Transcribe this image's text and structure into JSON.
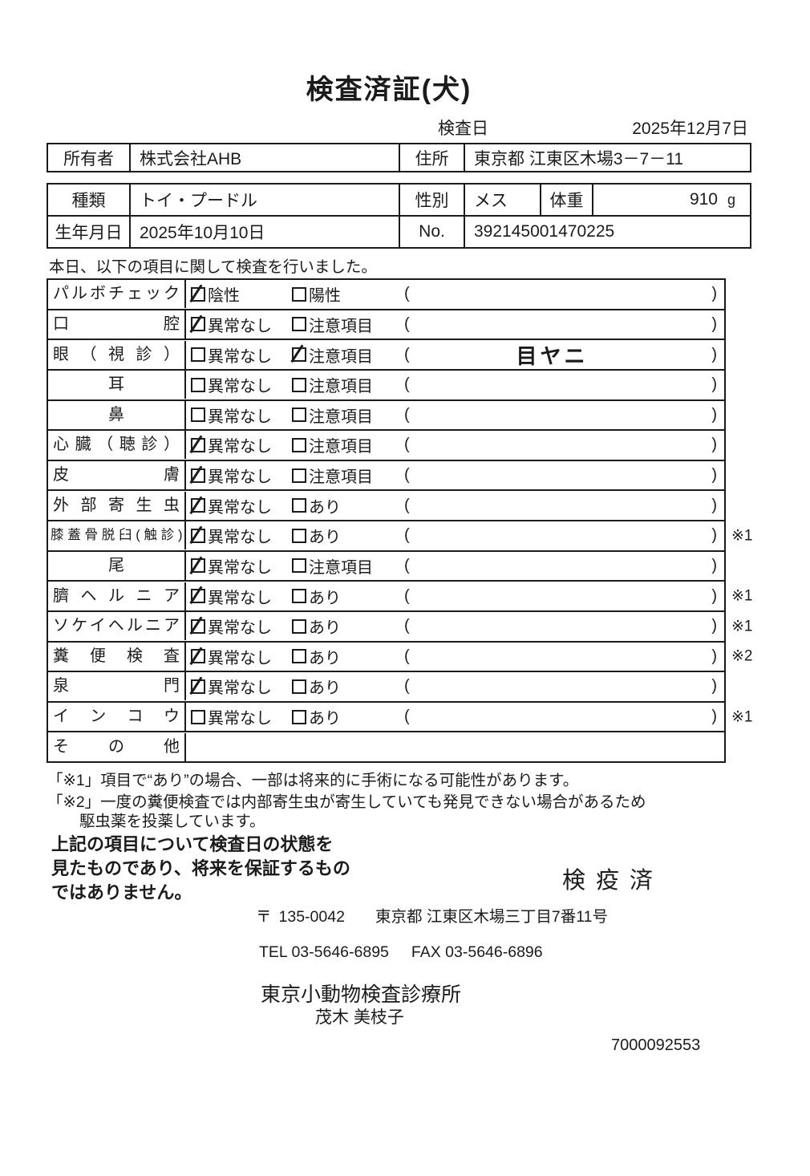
{
  "document": {
    "title": "検査済証(犬)",
    "inspection_date_label": "検査日",
    "inspection_date": "2025年12月7日",
    "intro": "本日、以下の項目に関して検査を行いました。"
  },
  "owner": {
    "owner_label": "所有者",
    "owner_name": "株式会社AHB",
    "address_label": "住所",
    "address": "東京都 江東区木場3－7－11"
  },
  "pet": {
    "breed_label": "種類",
    "breed": "トイ・プードル",
    "sex_label": "性別",
    "sex": "メス",
    "weight_label": "体重",
    "weight": "910",
    "weight_unit": "g",
    "birth_label": "生年月日",
    "birth_date": "2025年10月10日",
    "no_label": "No.",
    "no_value": "392145001470225"
  },
  "checklist": {
    "paren_open": "(",
    "paren_close": ")",
    "rows": [
      {
        "label": "パルボチェック",
        "option1": "陰性",
        "option2": "陽性",
        "checked": 0,
        "note": "",
        "mark": ""
      },
      {
        "label": "口腔",
        "option1": "異常なし",
        "option2": "注意項目",
        "checked": 0,
        "note": "",
        "mark": ""
      },
      {
        "label": "眼（視診）",
        "option1": "異常なし",
        "option2": "注意項目",
        "checked": 1,
        "note": "目ヤニ",
        "mark": ""
      },
      {
        "label": "耳",
        "option1": "異常なし",
        "option2": "注意項目",
        "checked": null,
        "note": "",
        "mark": ""
      },
      {
        "label": "鼻",
        "option1": "異常なし",
        "option2": "注意項目",
        "checked": null,
        "note": "",
        "mark": ""
      },
      {
        "label": "心臓（聴診）",
        "option1": "異常なし",
        "option2": "注意項目",
        "checked": 0,
        "note": "",
        "mark": ""
      },
      {
        "label": "皮膚",
        "option1": "異常なし",
        "option2": "注意項目",
        "checked": 0,
        "note": "",
        "mark": ""
      },
      {
        "label": "外部寄生虫",
        "option1": "異常なし",
        "option2": "あり",
        "checked": 0,
        "note": "",
        "mark": ""
      },
      {
        "label": "膝蓋骨脱臼(触診)",
        "option1": "異常なし",
        "option2": "あり",
        "checked": 0,
        "note": "",
        "mark": "※1"
      },
      {
        "label": "尾",
        "option1": "異常なし",
        "option2": "注意項目",
        "checked": 0,
        "note": "",
        "mark": ""
      },
      {
        "label": "臍ヘルニア",
        "option1": "異常なし",
        "option2": "あり",
        "checked": 0,
        "note": "",
        "mark": "※1"
      },
      {
        "label": "ソケイヘルニア",
        "option1": "異常なし",
        "option2": "あり",
        "checked": 0,
        "note": "",
        "mark": "※1"
      },
      {
        "label": "糞便検査",
        "option1": "異常なし",
        "option2": "あり",
        "checked": 0,
        "note": "",
        "mark": "※2"
      },
      {
        "label": "泉門",
        "option1": "異常なし",
        "option2": "あり",
        "checked": 0,
        "note": "",
        "mark": ""
      },
      {
        "label": "インコウ",
        "option1": "異常なし",
        "option2": "あり",
        "checked": null,
        "note": "",
        "mark": "※1"
      },
      {
        "label": "その他",
        "option1": "",
        "option2": "",
        "checked": null,
        "note": "",
        "mark": ""
      }
    ]
  },
  "notes": {
    "note1": "「※1」項目で“あり”の場合、一部は将来的に手術になる可能性があります。",
    "note2_line1": "「※2」一度の糞便検査では内部寄生虫が寄生していても発見できない場合があるため",
    "note2_line2": "駆虫薬を投薬しています。"
  },
  "disclaimer": {
    "line1": "上記の項目について検査日の状態を",
    "line2": "見たものであり、将来を保証するもの",
    "line3": "ではありません。"
  },
  "stamp": "検疫済",
  "footer": {
    "postal_mark": "〒",
    "postal_code": "135-0042",
    "address": "東京都 江東区木場三丁目7番11号",
    "tel": "TEL 03-5646-6895",
    "fax": "FAX 03-5646-6896",
    "clinic_name": "東京小動物検査診療所",
    "examiner_name": "茂木 美枝子",
    "serial_number": "7000092553"
  }
}
